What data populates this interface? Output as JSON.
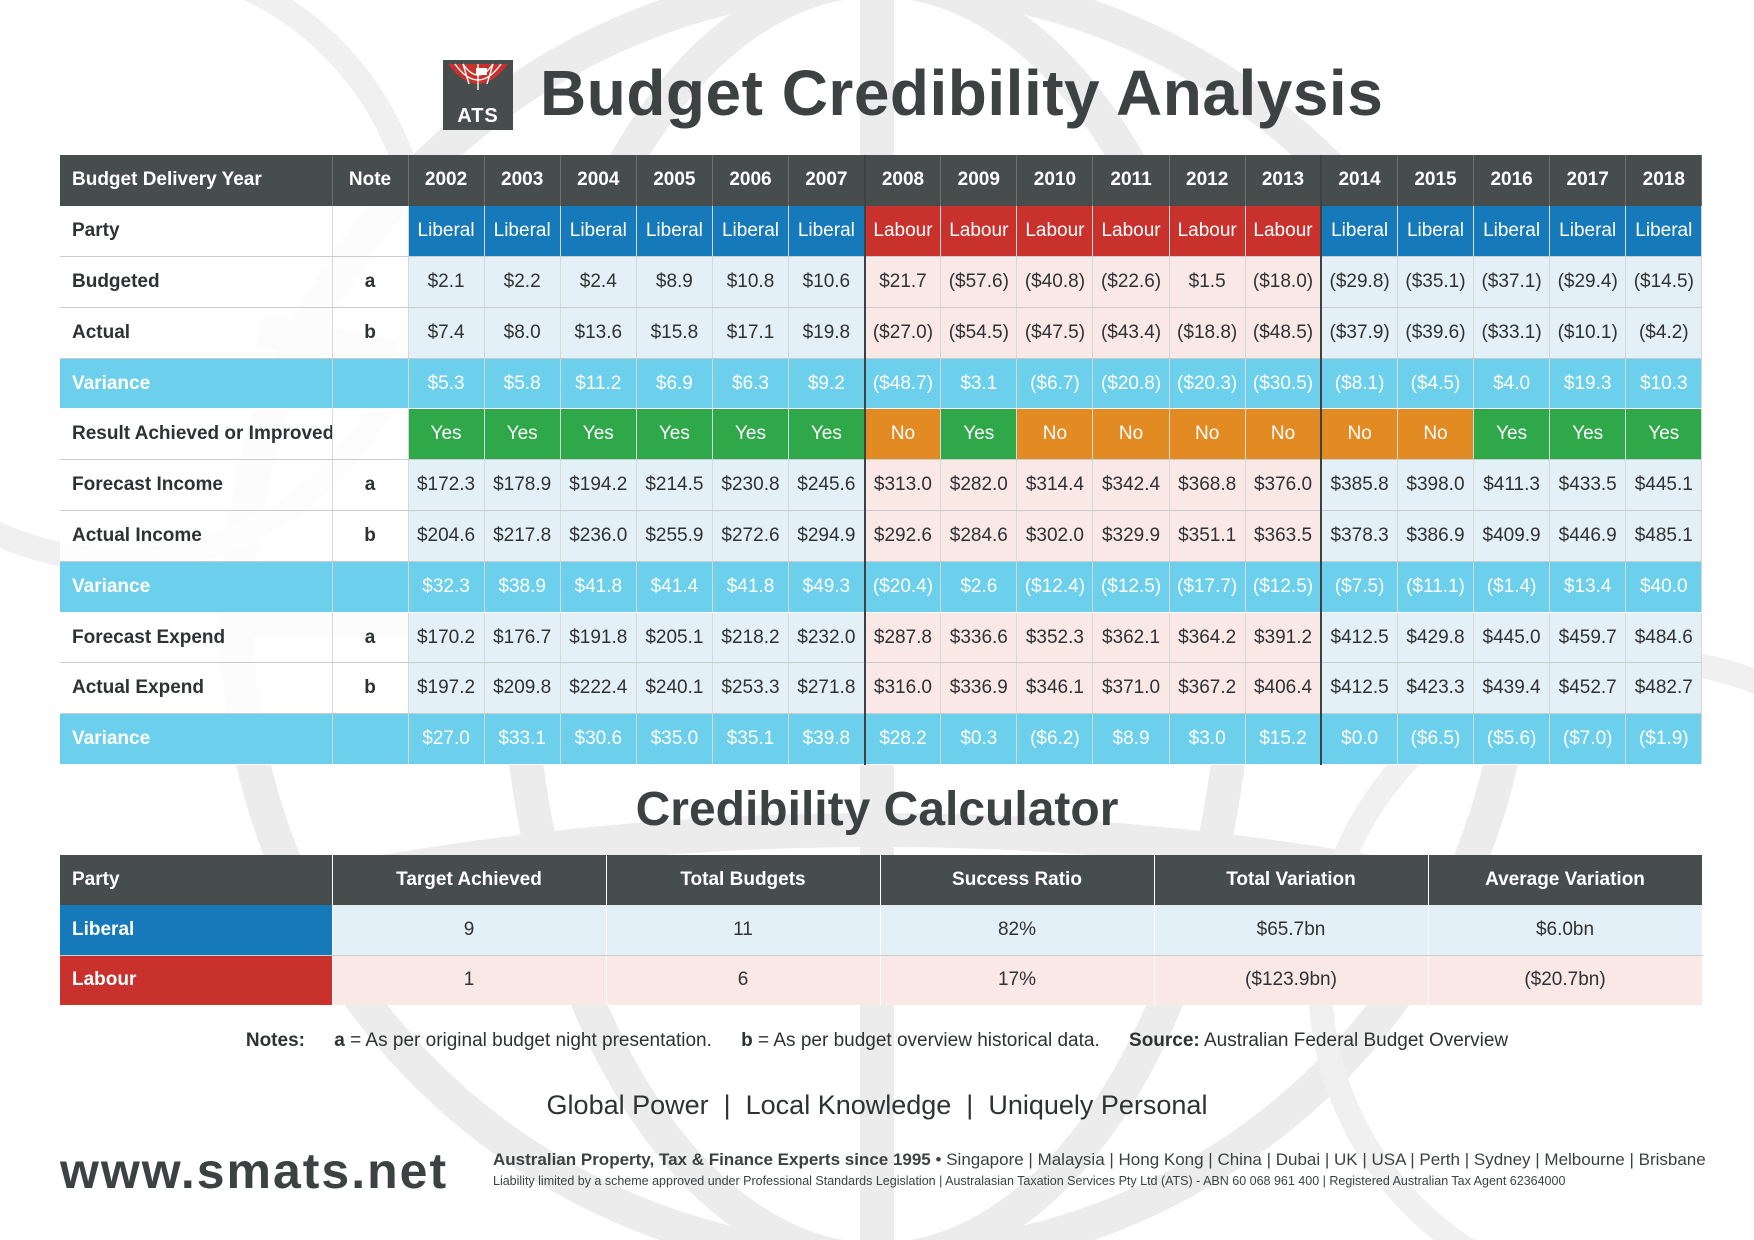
{
  "header": {
    "logo_text": "ATS",
    "title": "Budget Credibility Analysis"
  },
  "main_table": {
    "header": {
      "label": "Budget Delivery Year",
      "note": "Note"
    },
    "years": [
      "2002",
      "2003",
      "2004",
      "2005",
      "2006",
      "2007",
      "2008",
      "2009",
      "2010",
      "2011",
      "2012",
      "2013",
      "2014",
      "2015",
      "2016",
      "2017",
      "2018"
    ],
    "party": [
      "Liberal",
      "Liberal",
      "Liberal",
      "Liberal",
      "Liberal",
      "Liberal",
      "Labour",
      "Labour",
      "Labour",
      "Labour",
      "Labour",
      "Labour",
      "Liberal",
      "Liberal",
      "Liberal",
      "Liberal",
      "Liberal"
    ],
    "rows": [
      {
        "label": "Party",
        "note": "",
        "type": "party"
      },
      {
        "label": "Budgeted",
        "note": "a",
        "type": "data",
        "values": [
          "$2.1",
          "$2.2",
          "$2.4",
          "$8.9",
          "$10.8",
          "$10.6",
          "$21.7",
          "($57.6)",
          "($40.8)",
          "($22.6)",
          "$1.5",
          "($18.0)",
          "($29.8)",
          "($35.1)",
          "($37.1)",
          "($29.4)",
          "($14.5)"
        ]
      },
      {
        "label": "Actual",
        "note": "b",
        "type": "data",
        "values": [
          "$7.4",
          "$8.0",
          "$13.6",
          "$15.8",
          "$17.1",
          "$19.8",
          "($27.0)",
          "($54.5)",
          "($47.5)",
          "($43.4)",
          "($18.8)",
          "($48.5)",
          "($37.9)",
          "($39.6)",
          "($33.1)",
          "($10.1)",
          "($4.2)"
        ]
      },
      {
        "label": "Variance",
        "note": "",
        "type": "variance",
        "values": [
          "$5.3",
          "$5.8",
          "$11.2",
          "$6.9",
          "$6.3",
          "$9.2",
          "($48.7)",
          "$3.1",
          "($6.7)",
          "($20.8)",
          "($20.3)",
          "($30.5)",
          "($8.1)",
          "($4.5)",
          "$4.0",
          "$19.3",
          "$10.3"
        ]
      },
      {
        "label": "Result Achieved or Improved",
        "note": "",
        "type": "result",
        "values": [
          "Yes",
          "Yes",
          "Yes",
          "Yes",
          "Yes",
          "Yes",
          "No",
          "Yes",
          "No",
          "No",
          "No",
          "No",
          "No",
          "No",
          "Yes",
          "Yes",
          "Yes"
        ]
      },
      {
        "label": "Forecast Income",
        "note": "a",
        "type": "data",
        "values": [
          "$172.3",
          "$178.9",
          "$194.2",
          "$214.5",
          "$230.8",
          "$245.6",
          "$313.0",
          "$282.0",
          "$314.4",
          "$342.4",
          "$368.8",
          "$376.0",
          "$385.8",
          "$398.0",
          "$411.3",
          "$433.5",
          "$445.1"
        ]
      },
      {
        "label": "Actual Income",
        "note": "b",
        "type": "data",
        "values": [
          "$204.6",
          "$217.8",
          "$236.0",
          "$255.9",
          "$272.6",
          "$294.9",
          "$292.6",
          "$284.6",
          "$302.0",
          "$329.9",
          "$351.1",
          "$363.5",
          "$378.3",
          "$386.9",
          "$409.9",
          "$446.9",
          "$485.1"
        ]
      },
      {
        "label": "Variance",
        "note": "",
        "type": "variance",
        "values": [
          "$32.3",
          "$38.9",
          "$41.8",
          "$41.4",
          "$41.8",
          "$49.3",
          "($20.4)",
          "$2.6",
          "($12.4)",
          "($12.5)",
          "($17.7)",
          "($12.5)",
          "($7.5)",
          "($11.1)",
          "($1.4)",
          "$13.4",
          "$40.0"
        ]
      },
      {
        "label": "Forecast Expend",
        "note": "a",
        "type": "data",
        "values": [
          "$170.2",
          "$176.7",
          "$191.8",
          "$205.1",
          "$218.2",
          "$232.0",
          "$287.8",
          "$336.6",
          "$352.3",
          "$362.1",
          "$364.2",
          "$391.2",
          "$412.5",
          "$429.8",
          "$445.0",
          "$459.7",
          "$484.6"
        ]
      },
      {
        "label": "Actual Expend",
        "note": "b",
        "type": "data",
        "values": [
          "$197.2",
          "$209.8",
          "$222.4",
          "$240.1",
          "$253.3",
          "$271.8",
          "$316.0",
          "$336.9",
          "$346.1",
          "$371.0",
          "$367.2",
          "$406.4",
          "$412.5",
          "$423.3",
          "$439.4",
          "$452.7",
          "$482.7"
        ]
      },
      {
        "label": "Variance",
        "note": "",
        "type": "variance",
        "values": [
          "$27.0",
          "$33.1",
          "$30.6",
          "$35.0",
          "$35.1",
          "$39.8",
          "$28.2",
          "$0.3",
          "($6.2)",
          "$8.9",
          "$3.0",
          "$15.2",
          "$0.0",
          "($6.5)",
          "($5.6)",
          "($7.0)",
          "($1.9)"
        ]
      }
    ]
  },
  "calculator": {
    "title": "Credibility Calculator",
    "headers": [
      "Party",
      "Target Achieved",
      "Total Budgets",
      "Success Ratio",
      "Total Variation",
      "Average Variation"
    ],
    "rows": [
      {
        "party": "Liberal",
        "values": [
          "9",
          "11",
          "82%",
          "$65.7bn",
          "$6.0bn"
        ]
      },
      {
        "party": "Labour",
        "values": [
          "1",
          "6",
          "17%",
          "($123.9bn)",
          "($20.7bn)"
        ]
      }
    ]
  },
  "notes": {
    "label": "Notes:",
    "a_key": "a",
    "a_text": " = As per original budget night presentation.",
    "b_key": "b",
    "b_text": " = As per budget overview historical data.",
    "source_label": "Source:",
    "source_text": " Australian Federal Budget Overview"
  },
  "tagline": "Global Power  |  Local Knowledge  |  Uniquely Personal",
  "footer": {
    "website": "www.smats.net",
    "headline": "Australian Property, Tax & Finance Experts since 1995",
    "bullet": "•",
    "locations": "Singapore | Malaysia | Hong Kong | China | Dubai | UK | USA | Perth | Sydney | Melbourne | Brisbane",
    "legal": "Liability limited by a scheme approved under Professional Standards Legislation | Australasian Taxation Services Pty Ltd (ATS) - ABN 60 068 961 400 | Registered Australian Tax Agent 62364000"
  },
  "colors": {
    "liberal": "#1679b9",
    "labour": "#c9312c",
    "variance": "#6cd0ec",
    "yes": "#2fa84a",
    "no": "#e28b22",
    "header": "#474c4d"
  }
}
